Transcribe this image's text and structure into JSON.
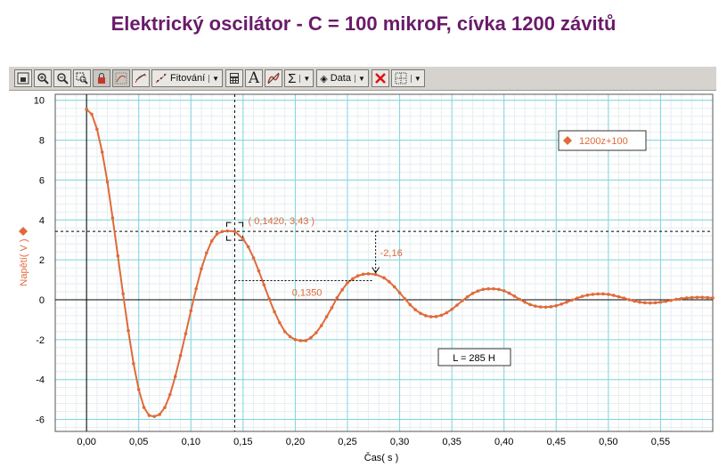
{
  "title": "Elektrický oscilátor - C = 100 mikroF, cívka 1200 závitů",
  "toolbar": {
    "fit_label": "Fitování",
    "data_label": "Data",
    "text_glyph": "A",
    "sigma_glyph": "Σ"
  },
  "chart_data": {
    "type": "line",
    "xlabel": "Čas( s )",
    "ylabel": "Napětí( V )",
    "xlim": [
      -0.03,
      0.6
    ],
    "ylim": [
      -6.6,
      10.3
    ],
    "x_ticks": [
      0.0,
      0.05,
      0.1,
      0.15,
      0.2,
      0.25,
      0.3,
      0.35,
      0.4,
      0.45,
      0.5,
      0.55
    ],
    "x_tick_labels": [
      "0,00",
      "0,05",
      "0,10",
      "0,15",
      "0,20",
      "0,25",
      "0,30",
      "0,35",
      "0,40",
      "0,45",
      "0,50",
      "0,55"
    ],
    "y_ticks": [
      10,
      8,
      6,
      4,
      2,
      0,
      -2,
      -4,
      -6
    ],
    "y_tick_labels": [
      "10",
      "8",
      "6",
      "4",
      "2",
      "0",
      "-2",
      "-4",
      "-6"
    ],
    "grid": true,
    "legend_position": "top-right",
    "series": [
      {
        "name": "1200z+100",
        "color": "#e06a3a",
        "points": [
          [
            0.0,
            9.55
          ],
          [
            0.005,
            9.3
          ],
          [
            0.01,
            8.55
          ],
          [
            0.015,
            7.4
          ],
          [
            0.02,
            5.9
          ],
          [
            0.025,
            4.1
          ],
          [
            0.03,
            2.2
          ],
          [
            0.035,
            0.3
          ],
          [
            0.04,
            -1.55
          ],
          [
            0.045,
            -3.2
          ],
          [
            0.05,
            -4.5
          ],
          [
            0.055,
            -5.4
          ],
          [
            0.06,
            -5.8
          ],
          [
            0.065,
            -5.85
          ],
          [
            0.07,
            -5.75
          ],
          [
            0.075,
            -5.4
          ],
          [
            0.08,
            -4.75
          ],
          [
            0.085,
            -3.85
          ],
          [
            0.09,
            -2.8
          ],
          [
            0.095,
            -1.7
          ],
          [
            0.1,
            -0.55
          ],
          [
            0.105,
            0.55
          ],
          [
            0.11,
            1.55
          ],
          [
            0.115,
            2.35
          ],
          [
            0.12,
            2.95
          ],
          [
            0.125,
            3.3
          ],
          [
            0.13,
            3.42
          ],
          [
            0.135,
            3.45
          ],
          [
            0.142,
            3.43
          ],
          [
            0.15,
            3.05
          ],
          [
            0.155,
            2.65
          ],
          [
            0.16,
            2.1
          ],
          [
            0.165,
            1.45
          ],
          [
            0.17,
            0.75
          ],
          [
            0.175,
            0.05
          ],
          [
            0.18,
            -0.6
          ],
          [
            0.185,
            -1.15
          ],
          [
            0.19,
            -1.6
          ],
          [
            0.195,
            -1.85
          ],
          [
            0.2,
            -2.0
          ],
          [
            0.205,
            -2.05
          ],
          [
            0.21,
            -2.05
          ],
          [
            0.215,
            -1.9
          ],
          [
            0.22,
            -1.65
          ],
          [
            0.225,
            -1.3
          ],
          [
            0.23,
            -0.85
          ],
          [
            0.235,
            -0.4
          ],
          [
            0.24,
            0.1
          ],
          [
            0.245,
            0.5
          ],
          [
            0.25,
            0.85
          ],
          [
            0.255,
            1.05
          ],
          [
            0.26,
            1.2
          ],
          [
            0.265,
            1.28
          ],
          [
            0.27,
            1.3
          ],
          [
            0.277,
            1.27
          ],
          [
            0.285,
            1.1
          ],
          [
            0.29,
            0.9
          ],
          [
            0.295,
            0.65
          ],
          [
            0.3,
            0.35
          ],
          [
            0.305,
            0.05
          ],
          [
            0.31,
            -0.25
          ],
          [
            0.315,
            -0.5
          ],
          [
            0.32,
            -0.68
          ],
          [
            0.325,
            -0.8
          ],
          [
            0.33,
            -0.85
          ],
          [
            0.335,
            -0.84
          ],
          [
            0.34,
            -0.78
          ],
          [
            0.345,
            -0.65
          ],
          [
            0.35,
            -0.48
          ],
          [
            0.355,
            -0.27
          ],
          [
            0.36,
            -0.05
          ],
          [
            0.365,
            0.15
          ],
          [
            0.37,
            0.32
          ],
          [
            0.375,
            0.44
          ],
          [
            0.38,
            0.52
          ],
          [
            0.385,
            0.55
          ],
          [
            0.39,
            0.55
          ],
          [
            0.395,
            0.52
          ],
          [
            0.4,
            0.45
          ],
          [
            0.405,
            0.33
          ],
          [
            0.41,
            0.18
          ],
          [
            0.415,
            0.02
          ],
          [
            0.42,
            -0.12
          ],
          [
            0.425,
            -0.24
          ],
          [
            0.43,
            -0.32
          ],
          [
            0.435,
            -0.36
          ],
          [
            0.44,
            -0.37
          ],
          [
            0.445,
            -0.35
          ],
          [
            0.45,
            -0.3
          ],
          [
            0.455,
            -0.22
          ],
          [
            0.46,
            -0.12
          ],
          [
            0.465,
            -0.02
          ],
          [
            0.47,
            0.08
          ],
          [
            0.475,
            0.17
          ],
          [
            0.48,
            0.23
          ],
          [
            0.485,
            0.27
          ],
          [
            0.49,
            0.29
          ],
          [
            0.495,
            0.29
          ],
          [
            0.5,
            0.27
          ],
          [
            0.505,
            0.22
          ],
          [
            0.51,
            0.15
          ],
          [
            0.515,
            0.08
          ],
          [
            0.52,
            0.0
          ],
          [
            0.525,
            -0.07
          ],
          [
            0.53,
            -0.12
          ],
          [
            0.535,
            -0.15
          ],
          [
            0.54,
            -0.16
          ],
          [
            0.545,
            -0.15
          ],
          [
            0.55,
            -0.12
          ],
          [
            0.555,
            -0.08
          ],
          [
            0.56,
            -0.03
          ],
          [
            0.565,
            0.02
          ],
          [
            0.57,
            0.06
          ],
          [
            0.575,
            0.09
          ],
          [
            0.58,
            0.11
          ],
          [
            0.585,
            0.12
          ],
          [
            0.59,
            0.12
          ],
          [
            0.595,
            0.11
          ],
          [
            0.6,
            0.09
          ]
        ]
      }
    ],
    "cursor": {
      "x": 0.142,
      "y": 3.43
    },
    "annotations": {
      "peak_label": "( 0,1420, 3,43 )",
      "delta_y_label": "-2,16",
      "delta_x_label": "0,1350",
      "second_peak": {
        "x": 0.277,
        "y": 1.27
      },
      "note_label": "L = 285 H"
    }
  }
}
